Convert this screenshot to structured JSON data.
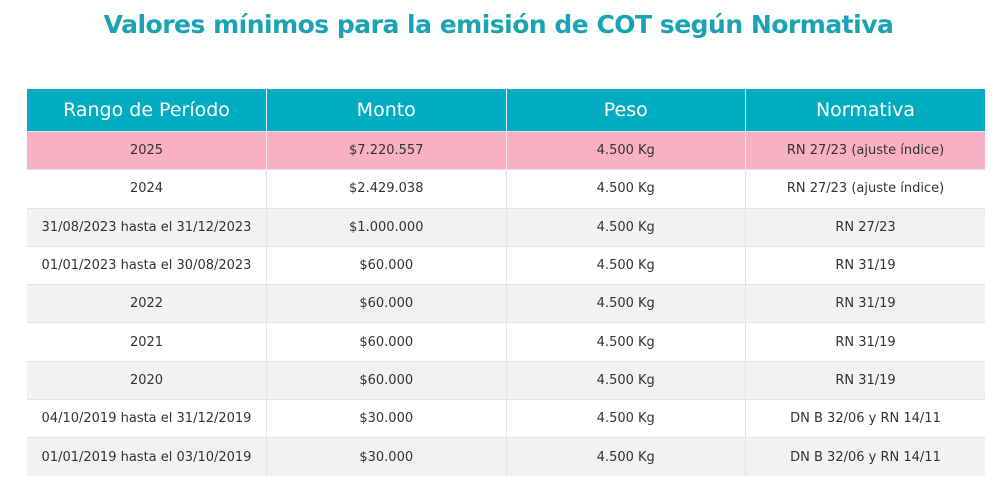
{
  "title": "Valores mínimos para la emisión de COT según Normativa",
  "colors": {
    "title": "#1aa3b3",
    "header_bg": "#00acc1",
    "highlight_row": "#f9afc4",
    "alt_row": "#f2f2f2"
  },
  "table": {
    "headers": [
      "Rango de Período",
      "Monto",
      "Peso",
      "Normativa"
    ],
    "rows": [
      [
        "2025",
        "$7.220.557",
        "4.500 Kg",
        "RN 27/23 (ajuste índice)"
      ],
      [
        "2024",
        "$2.429.038",
        "4.500 Kg",
        "RN 27/23 (ajuste índice)"
      ],
      [
        "31/08/2023 hasta el 31/12/2023",
        "$1.000.000",
        "4.500 Kg",
        "RN 27/23"
      ],
      [
        "01/01/2023 hasta el 30/08/2023",
        "$60.000",
        "4.500 Kg",
        "RN 31/19"
      ],
      [
        "2022",
        "$60.000",
        "4.500 Kg",
        "RN 31/19"
      ],
      [
        "2021",
        "$60.000",
        "4.500 Kg",
        "RN 31/19"
      ],
      [
        "2020",
        "$60.000",
        "4.500 Kg",
        "RN 31/19"
      ],
      [
        "04/10/2019 hasta el 31/12/2019",
        "$30.000",
        "4.500 Kg",
        "DN B 32/06 y RN 14/11"
      ],
      [
        "01/01/2019 hasta el 03/10/2019",
        "$30.000",
        "4.500 Kg",
        "DN B 32/06 y RN 14/11"
      ]
    ]
  }
}
